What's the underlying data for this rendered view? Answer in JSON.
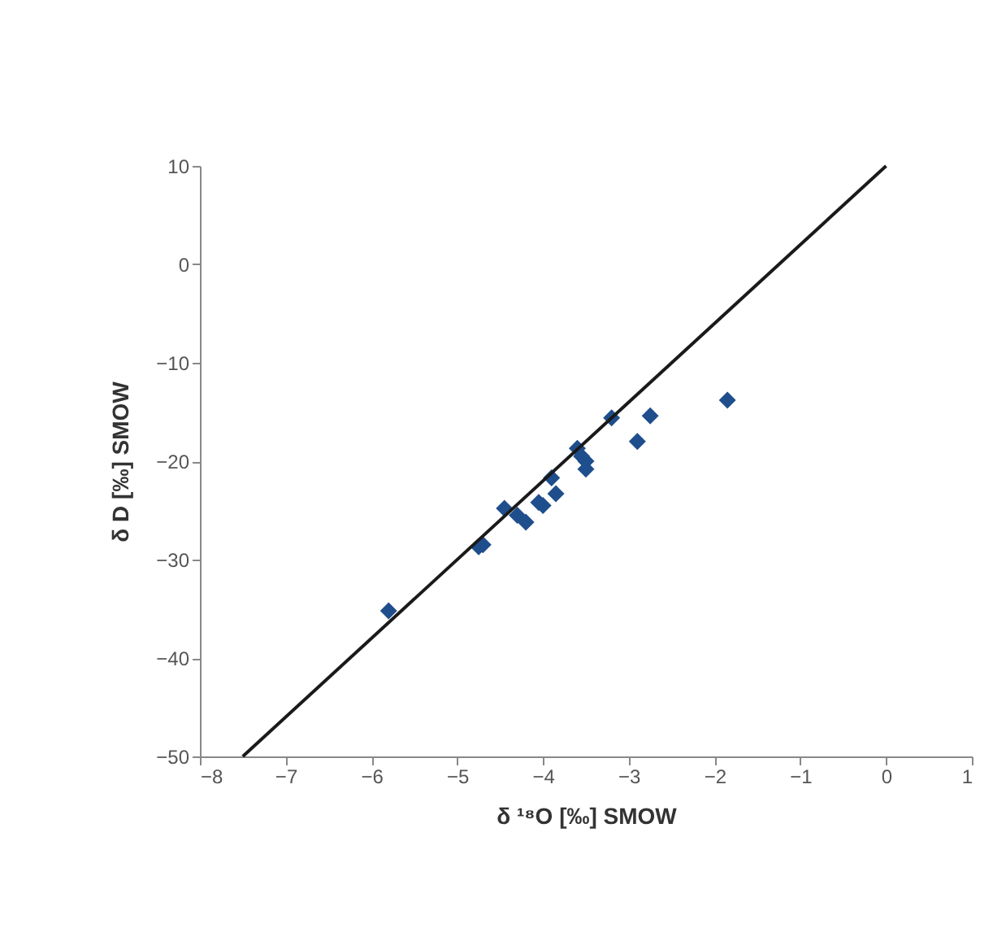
{
  "chart_data": {
    "type": "scatter",
    "xlabel": "δ ¹⁸O [‰] SMOW",
    "ylabel": "δ D [‰] SMOW",
    "xlim": [
      -8,
      1
    ],
    "xticks": [
      -8,
      -7,
      -6,
      -5,
      -4,
      -3,
      -2,
      -1,
      0,
      1
    ],
    "ylim": [
      -50,
      10
    ],
    "yticks": [
      -50,
      -40,
      -30,
      -20,
      -10,
      0,
      10
    ],
    "grid": false,
    "series": [
      {
        "marker": "diamond",
        "color": "#1f4e8c",
        "x": [
          -5.8,
          -4.75,
          -4.7,
          -4.45,
          -4.3,
          -4.2,
          -4.05,
          -4.0,
          -3.9,
          -3.85,
          -3.6,
          -3.55,
          -3.5,
          -3.5,
          -3.2,
          -2.9,
          -2.75,
          -1.85
        ],
        "values": [
          -35.2,
          -28.7,
          -28.5,
          -24.8,
          -25.5,
          -26.2,
          -24.2,
          -24.5,
          -21.7,
          -23.3,
          -18.7,
          -19.5,
          -20.8,
          -20.0,
          -15.6,
          -18.0,
          -15.4,
          -13.8
        ]
      },
      {
        "type": "line",
        "color": "#1a1a1a",
        "x": [
          -7.5,
          0
        ],
        "values": [
          -50,
          10
        ]
      }
    ]
  }
}
